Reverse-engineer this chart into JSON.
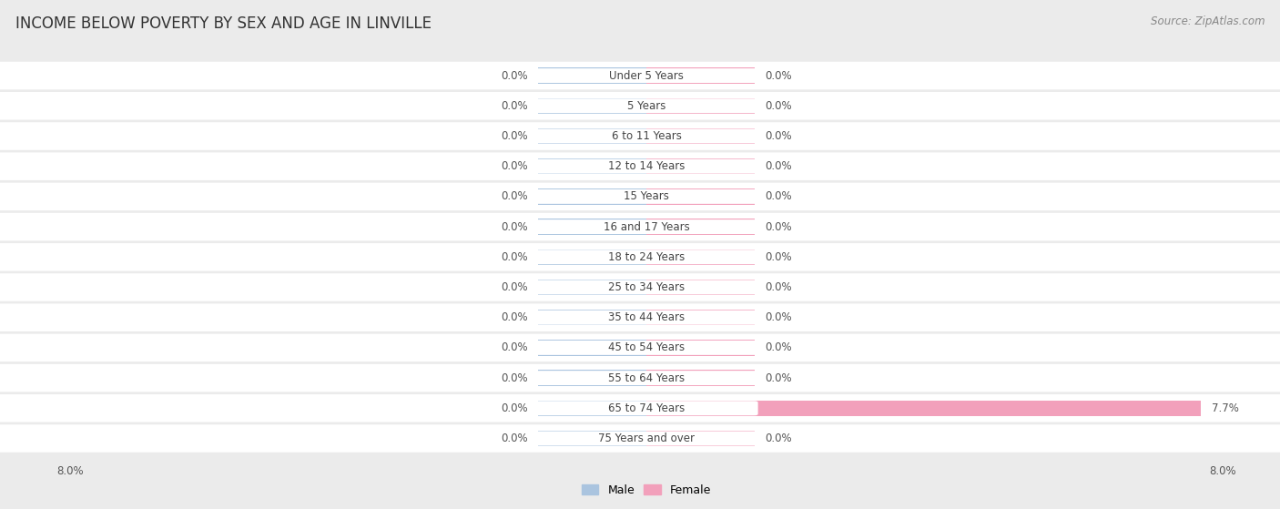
{
  "title": "INCOME BELOW POVERTY BY SEX AND AGE IN LINVILLE",
  "source": "Source: ZipAtlas.com",
  "categories": [
    "Under 5 Years",
    "5 Years",
    "6 to 11 Years",
    "12 to 14 Years",
    "15 Years",
    "16 and 17 Years",
    "18 to 24 Years",
    "25 to 34 Years",
    "35 to 44 Years",
    "45 to 54 Years",
    "55 to 64 Years",
    "65 to 74 Years",
    "75 Years and over"
  ],
  "male_values": [
    0.0,
    0.0,
    0.0,
    0.0,
    0.0,
    0.0,
    0.0,
    0.0,
    0.0,
    0.0,
    0.0,
    0.0,
    0.0
  ],
  "female_values": [
    0.0,
    0.0,
    0.0,
    0.0,
    0.0,
    0.0,
    0.0,
    0.0,
    0.0,
    0.0,
    0.0,
    7.7,
    0.0
  ],
  "male_color": "#aac4df",
  "female_color": "#f2a0bb",
  "axis_limit": 8.0,
  "min_bar_width": 1.5,
  "background_color": "#ebebeb",
  "row_bg_color": "#ffffff",
  "row_alt_bg_color": "#f5f5f5",
  "title_fontsize": 12,
  "label_fontsize": 8.5,
  "source_fontsize": 8.5,
  "bar_height": 0.52
}
